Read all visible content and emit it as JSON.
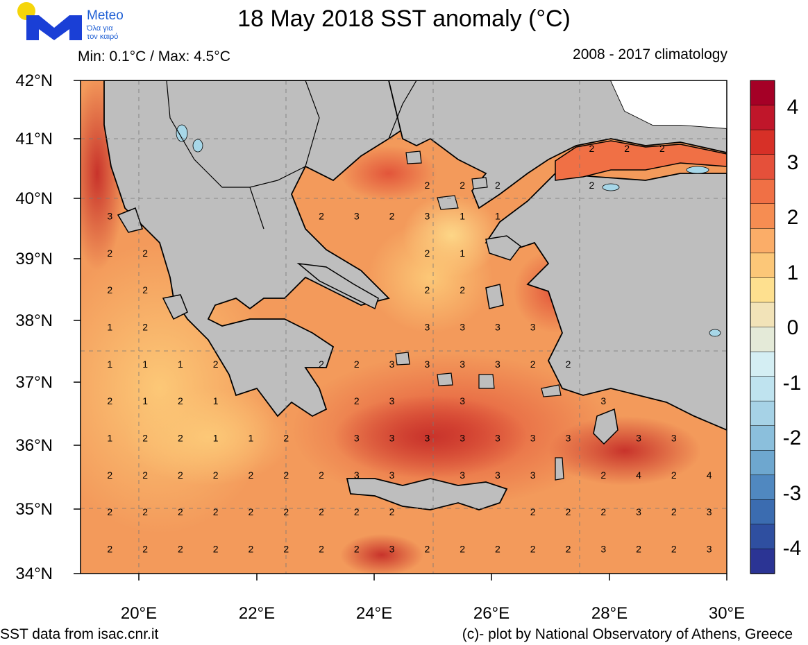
{
  "header": {
    "title": "18 May 2018 SST anomaly (°C)",
    "min_max": "Min: 0.1°C / Max: 4.5°C",
    "climatology": "2008 - 2017 climatology"
  },
  "logo": {
    "brand": "Meteo",
    "tagline_1": "Όλα για",
    "tagline_2": "τον καιρό",
    "sun_color": "#f5d50a",
    "mark_color": "#1a3fd6"
  },
  "footer": {
    "source": "SST data from isac.cnr.it",
    "credit": "(c)- plot by National Observatory of Athens, Greece"
  },
  "axes": {
    "lat_labels": [
      "42°N",
      "41°N",
      "40°N",
      "39°N",
      "38°N",
      "37°N",
      "36°N",
      "35°N",
      "34°N"
    ],
    "lon_labels": [
      "20°E",
      "22°E",
      "24°E",
      "26°E",
      "28°E",
      "30°E"
    ],
    "lat_range": [
      34,
      42
    ],
    "lon_range": [
      19,
      30
    ],
    "grid": "dashed every 1.5° longitude, 1.5° latitude"
  },
  "colorbar": {
    "labels": [
      "4",
      "3",
      "2",
      "1",
      "0",
      "-1",
      "-2",
      "-3",
      "-4"
    ],
    "range": [
      -4.5,
      4.5
    ],
    "step": 0.5,
    "colors": [
      "#a50026",
      "#c0162a",
      "#d73027",
      "#e5503a",
      "#f07045",
      "#f68d52",
      "#fbad68",
      "#fcc778",
      "#fee08f",
      "#f2e3b8",
      "#e4ead8",
      "#d4eef3",
      "#bfe3ef",
      "#a6d2e6",
      "#8bbfdc",
      "#6ea7cf",
      "#5088c0",
      "#3b6cb0",
      "#2f4fa0",
      "#2b3494"
    ]
  },
  "map_colors": {
    "land": "#bebebe",
    "sea_base": "#f39a5b",
    "warm": "#e0553a",
    "hot": "#cc3a2e",
    "cool": "#fbb46c",
    "coolest": "#fcd27f",
    "lakes": "#a7d7e8"
  },
  "contour_labels": [
    {
      "text": "3",
      "lon": 19.5,
      "lat": 39.8
    },
    {
      "text": "2",
      "lon": 19.5,
      "lat": 39.2
    },
    {
      "text": "2",
      "lon": 20.1,
      "lat": 39.2
    },
    {
      "text": "2",
      "lon": 19.5,
      "lat": 38.6
    },
    {
      "text": "2",
      "lon": 20.1,
      "lat": 38.6
    },
    {
      "text": "1",
      "lon": 19.5,
      "lat": 38.0
    },
    {
      "text": "2",
      "lon": 20.1,
      "lat": 38.0
    },
    {
      "text": "1",
      "lon": 19.5,
      "lat": 37.4
    },
    {
      "text": "1",
      "lon": 20.1,
      "lat": 37.4
    },
    {
      "text": "1",
      "lon": 20.7,
      "lat": 37.4
    },
    {
      "text": "2",
      "lon": 21.3,
      "lat": 37.4
    },
    {
      "text": "2",
      "lon": 19.5,
      "lat": 36.8
    },
    {
      "text": "1",
      "lon": 20.1,
      "lat": 36.8
    },
    {
      "text": "2",
      "lon": 20.7,
      "lat": 36.8
    },
    {
      "text": "1",
      "lon": 21.3,
      "lat": 36.8
    },
    {
      "text": "1",
      "lon": 19.5,
      "lat": 36.2
    },
    {
      "text": "2",
      "lon": 20.1,
      "lat": 36.2
    },
    {
      "text": "2",
      "lon": 20.7,
      "lat": 36.2
    },
    {
      "text": "1",
      "lon": 21.3,
      "lat": 36.2
    },
    {
      "text": "1",
      "lon": 21.9,
      "lat": 36.2
    },
    {
      "text": "2",
      "lon": 22.5,
      "lat": 36.2
    },
    {
      "text": "2",
      "lon": 19.5,
      "lat": 35.6
    },
    {
      "text": "2",
      "lon": 20.1,
      "lat": 35.6
    },
    {
      "text": "2",
      "lon": 20.7,
      "lat": 35.6
    },
    {
      "text": "2",
      "lon": 21.3,
      "lat": 35.6
    },
    {
      "text": "2",
      "lon": 21.9,
      "lat": 35.6
    },
    {
      "text": "2",
      "lon": 22.5,
      "lat": 35.6
    },
    {
      "text": "2",
      "lon": 23.1,
      "lat": 35.6
    },
    {
      "text": "3",
      "lon": 23.7,
      "lat": 35.6
    },
    {
      "text": "3",
      "lon": 24.3,
      "lat": 35.6
    },
    {
      "text": "3",
      "lon": 25.5,
      "lat": 35.6
    },
    {
      "text": "3",
      "lon": 26.1,
      "lat": 35.6
    },
    {
      "text": "3",
      "lon": 26.7,
      "lat": 35.6
    },
    {
      "text": "2",
      "lon": 27.9,
      "lat": 35.6
    },
    {
      "text": "4",
      "lon": 28.5,
      "lat": 35.6
    },
    {
      "text": "2",
      "lon": 29.1,
      "lat": 35.6
    },
    {
      "text": "4",
      "lon": 29.7,
      "lat": 35.6
    },
    {
      "text": "2",
      "lon": 19.5,
      "lat": 35.0
    },
    {
      "text": "2",
      "lon": 20.1,
      "lat": 35.0
    },
    {
      "text": "2",
      "lon": 20.7,
      "lat": 35.0
    },
    {
      "text": "2",
      "lon": 21.3,
      "lat": 35.0
    },
    {
      "text": "2",
      "lon": 21.9,
      "lat": 35.0
    },
    {
      "text": "2",
      "lon": 22.5,
      "lat": 35.0
    },
    {
      "text": "2",
      "lon": 23.1,
      "lat": 35.0
    },
    {
      "text": "2",
      "lon": 23.7,
      "lat": 35.0
    },
    {
      "text": "2",
      "lon": 24.3,
      "lat": 35.0
    },
    {
      "text": "2",
      "lon": 26.7,
      "lat": 35.0
    },
    {
      "text": "2",
      "lon": 27.3,
      "lat": 35.0
    },
    {
      "text": "2",
      "lon": 27.9,
      "lat": 35.0
    },
    {
      "text": "3",
      "lon": 28.5,
      "lat": 35.0
    },
    {
      "text": "2",
      "lon": 29.1,
      "lat": 35.0
    },
    {
      "text": "3",
      "lon": 29.7,
      "lat": 35.0
    },
    {
      "text": "2",
      "lon": 19.5,
      "lat": 34.4
    },
    {
      "text": "2",
      "lon": 20.1,
      "lat": 34.4
    },
    {
      "text": "2",
      "lon": 20.7,
      "lat": 34.4
    },
    {
      "text": "2",
      "lon": 21.3,
      "lat": 34.4
    },
    {
      "text": "2",
      "lon": 21.9,
      "lat": 34.4
    },
    {
      "text": "2",
      "lon": 22.5,
      "lat": 34.4
    },
    {
      "text": "2",
      "lon": 23.1,
      "lat": 34.4
    },
    {
      "text": "2",
      "lon": 23.7,
      "lat": 34.4
    },
    {
      "text": "3",
      "lon": 24.3,
      "lat": 34.4
    },
    {
      "text": "2",
      "lon": 24.9,
      "lat": 34.4
    },
    {
      "text": "2",
      "lon": 25.5,
      "lat": 34.4
    },
    {
      "text": "2",
      "lon": 26.1,
      "lat": 34.4
    },
    {
      "text": "2",
      "lon": 26.7,
      "lat": 34.4
    },
    {
      "text": "2",
      "lon": 27.3,
      "lat": 34.4
    },
    {
      "text": "3",
      "lon": 27.9,
      "lat": 34.4
    },
    {
      "text": "2",
      "lon": 28.5,
      "lat": 34.4
    },
    {
      "text": "2",
      "lon": 29.1,
      "lat": 34.4
    },
    {
      "text": "3",
      "lon": 29.7,
      "lat": 34.4
    },
    {
      "text": "3",
      "lon": 23.7,
      "lat": 36.2
    },
    {
      "text": "3",
      "lon": 24.3,
      "lat": 36.2
    },
    {
      "text": "3",
      "lon": 24.9,
      "lat": 36.2
    },
    {
      "text": "3",
      "lon": 25.5,
      "lat": 36.2
    },
    {
      "text": "3",
      "lon": 26.1,
      "lat": 36.2
    },
    {
      "text": "3",
      "lon": 26.7,
      "lat": 36.2
    },
    {
      "text": "3",
      "lon": 27.3,
      "lat": 36.2
    },
    {
      "text": "3",
      "lon": 28.5,
      "lat": 36.2
    },
    {
      "text": "3",
      "lon": 29.1,
      "lat": 36.2
    },
    {
      "text": "2",
      "lon": 23.7,
      "lat": 36.8
    },
    {
      "text": "3",
      "lon": 24.3,
      "lat": 36.8
    },
    {
      "text": "3",
      "lon": 25.5,
      "lat": 36.8
    },
    {
      "text": "3",
      "lon": 27.9,
      "lat": 36.8
    },
    {
      "text": "2",
      "lon": 23.1,
      "lat": 37.4
    },
    {
      "text": "2",
      "lon": 23.7,
      "lat": 37.4
    },
    {
      "text": "3",
      "lon": 24.3,
      "lat": 37.4
    },
    {
      "text": "3",
      "lon": 24.9,
      "lat": 37.4
    },
    {
      "text": "3",
      "lon": 25.5,
      "lat": 37.4
    },
    {
      "text": "3",
      "lon": 26.1,
      "lat": 37.4
    },
    {
      "text": "2",
      "lon": 26.7,
      "lat": 37.4
    },
    {
      "text": "2",
      "lon": 27.3,
      "lat": 37.4
    },
    {
      "text": "3",
      "lon": 24.9,
      "lat": 38.0
    },
    {
      "text": "3",
      "lon": 25.5,
      "lat": 38.0
    },
    {
      "text": "3",
      "lon": 26.1,
      "lat": 38.0
    },
    {
      "text": "3",
      "lon": 26.7,
      "lat": 38.0
    },
    {
      "text": "2",
      "lon": 24.9,
      "lat": 38.6
    },
    {
      "text": "2",
      "lon": 25.5,
      "lat": 38.6
    },
    {
      "text": "2",
      "lon": 24.9,
      "lat": 39.2
    },
    {
      "text": "1",
      "lon": 25.5,
      "lat": 39.2
    },
    {
      "text": "2",
      "lon": 23.1,
      "lat": 39.8
    },
    {
      "text": "3",
      "lon": 23.7,
      "lat": 39.8
    },
    {
      "text": "2",
      "lon": 24.3,
      "lat": 39.8
    },
    {
      "text": "3",
      "lon": 24.9,
      "lat": 39.8
    },
    {
      "text": "1",
      "lon": 25.5,
      "lat": 39.8
    },
    {
      "text": "1",
      "lon": 26.1,
      "lat": 39.8
    },
    {
      "text": "2",
      "lon": 24.9,
      "lat": 40.3
    },
    {
      "text": "2",
      "lon": 25.5,
      "lat": 40.3
    },
    {
      "text": "2",
      "lon": 26.1,
      "lat": 40.3
    },
    {
      "text": "2",
      "lon": 27.7,
      "lat": 40.9
    },
    {
      "text": "2",
      "lon": 28.3,
      "lat": 40.9
    },
    {
      "text": "2",
      "lon": 28.9,
      "lat": 40.9
    },
    {
      "text": "2",
      "lon": 27.7,
      "lat": 40.3
    }
  ]
}
